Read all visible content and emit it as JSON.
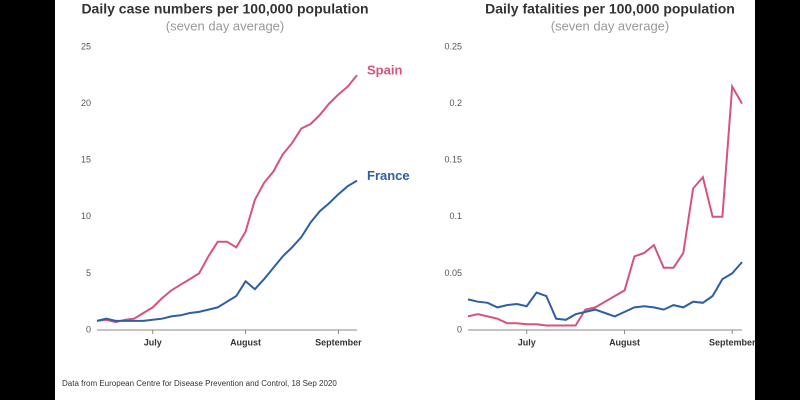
{
  "chart_data": [
    {
      "type": "line",
      "title": "Daily case numbers per 100,000 population",
      "subtitle": "(seven day average)",
      "categories": [
        null,
        null,
        null,
        null,
        null,
        null,
        "July",
        null,
        null,
        null,
        null,
        null,
        null,
        null,
        null,
        null,
        "August",
        null,
        null,
        null,
        null,
        null,
        null,
        null,
        null,
        null,
        "September",
        null,
        null
      ],
      "ylim": [
        0,
        25
      ],
      "yticks": [
        0,
        5,
        10,
        15,
        20,
        25
      ],
      "grid": false,
      "series": [
        {
          "name": "Spain",
          "color": "#d6537a",
          "values": [
            0.8,
            0.9,
            0.7,
            0.9,
            1.0,
            1.5,
            2.0,
            2.8,
            3.5,
            4.0,
            4.5,
            5.0,
            6.5,
            7.8,
            7.8,
            7.3,
            8.7,
            11.5,
            13.0,
            14.0,
            15.5,
            16.5,
            17.8,
            18.2,
            19.0,
            20.0,
            20.8,
            21.5,
            22.5
          ]
        },
        {
          "name": "France",
          "color": "#2e5fa3",
          "values": [
            0.8,
            1.0,
            0.8,
            0.8,
            0.8,
            0.8,
            0.9,
            1.0,
            1.2,
            1.3,
            1.5,
            1.6,
            1.8,
            2.0,
            2.5,
            3.0,
            4.3,
            3.6,
            4.5,
            5.5,
            6.5,
            7.3,
            8.2,
            9.5,
            10.5,
            11.2,
            12.0,
            12.7,
            13.2
          ]
        }
      ]
    },
    {
      "type": "line",
      "title": "Daily fatalities per 100,000 population",
      "subtitle": "(seven day average)",
      "categories": [
        null,
        null,
        null,
        null,
        null,
        null,
        "July",
        null,
        null,
        null,
        null,
        null,
        null,
        null,
        null,
        null,
        "August",
        null,
        null,
        null,
        null,
        null,
        null,
        null,
        null,
        null,
        null,
        "September",
        null
      ],
      "ylim": [
        0,
        0.25
      ],
      "yticks": [
        0,
        0.05,
        0.1,
        0.15,
        0.2,
        0.25
      ],
      "grid": false,
      "series": [
        {
          "color": "#d6537a",
          "values": [
            0.012,
            0.014,
            0.012,
            0.01,
            0.006,
            0.006,
            0.005,
            0.005,
            0.004,
            0.004,
            0.004,
            0.004,
            0.018,
            0.02,
            0.025,
            0.03,
            0.035,
            0.065,
            0.068,
            0.075,
            0.055,
            0.055,
            0.068,
            0.125,
            0.135,
            0.1,
            0.1,
            0.215,
            0.2
          ]
        },
        {
          "color": "#2e5fa3",
          "values": [
            0.027,
            0.025,
            0.024,
            0.02,
            0.022,
            0.023,
            0.021,
            0.033,
            0.03,
            0.01,
            0.009,
            0.014,
            0.016,
            0.018,
            0.015,
            0.012,
            0.016,
            0.02,
            0.021,
            0.02,
            0.018,
            0.022,
            0.02,
            0.025,
            0.024,
            0.03,
            0.045,
            0.05,
            0.06
          ]
        }
      ]
    }
  ],
  "source": "Data from European Centre for Disease Prevention and Control, 18 Sep 2020"
}
